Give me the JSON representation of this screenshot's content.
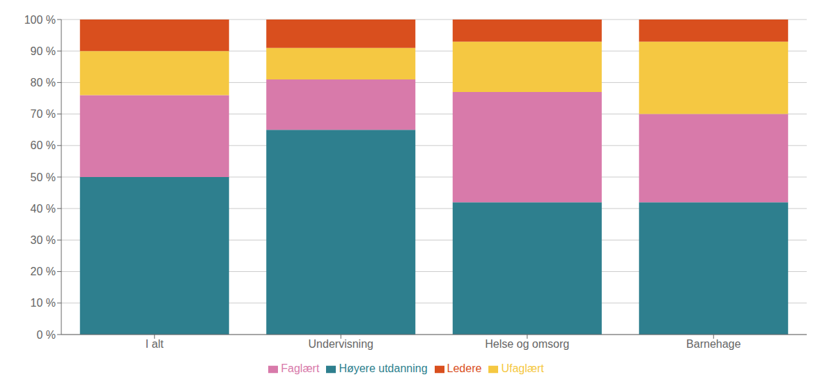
{
  "chart_data": {
    "type": "bar",
    "stacked": true,
    "categories": [
      "I alt",
      "Undervisning",
      "Helse og omsorg",
      "Barnehage"
    ],
    "series": [
      {
        "name": "Høyere utdanning",
        "color": "#2e7f8e",
        "values": [
          50,
          65,
          42,
          42
        ]
      },
      {
        "name": "Faglært",
        "color": "#d87aaa",
        "values": [
          26,
          16,
          35,
          28
        ]
      },
      {
        "name": "Ufaglært",
        "color": "#f5c842",
        "values": [
          14,
          10,
          16,
          23
        ]
      },
      {
        "name": "Ledere",
        "color": "#d94f1e",
        "values": [
          10,
          9,
          7,
          7
        ]
      }
    ],
    "ylim": [
      0,
      100
    ],
    "yticks": [
      {
        "value": 0,
        "label": "0 %"
      },
      {
        "value": 10,
        "label": "10 %"
      },
      {
        "value": 20,
        "label": "20 %"
      },
      {
        "value": 30,
        "label": "30 %"
      },
      {
        "value": 40,
        "label": "40 %"
      },
      {
        "value": 50,
        "label": "50 %"
      },
      {
        "value": 60,
        "label": "60 %"
      },
      {
        "value": 70,
        "label": "70 %"
      },
      {
        "value": 80,
        "label": "80 %"
      },
      {
        "value": 90,
        "label": "90 %"
      },
      {
        "value": 100,
        "label": "100 %"
      }
    ],
    "grid": true,
    "legend": "bottom"
  }
}
